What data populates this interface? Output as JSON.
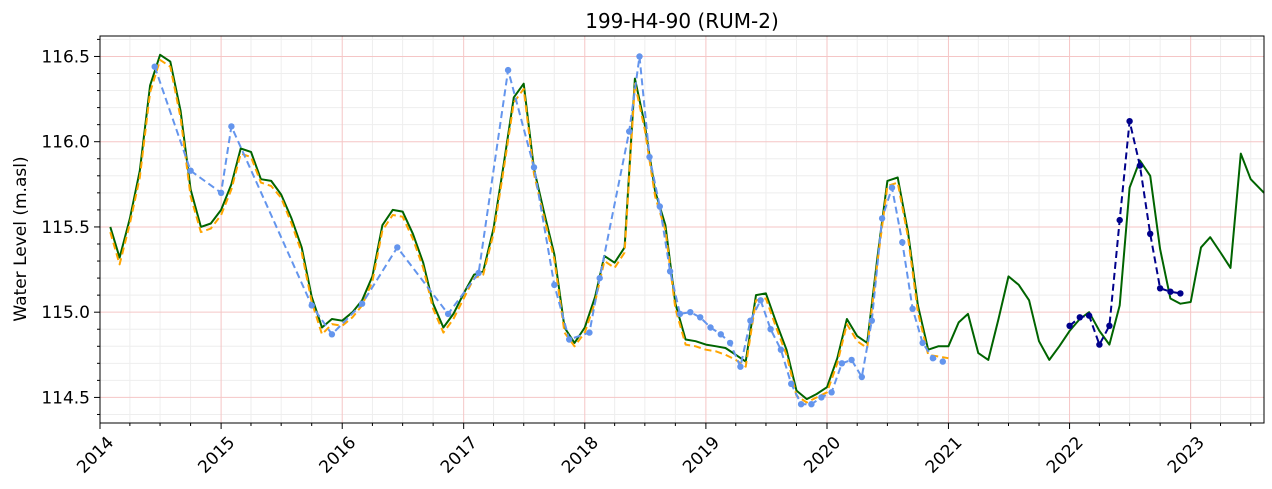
{
  "chart_data": {
    "type": "line",
    "title": "199-H4-90 (RUM-2)",
    "xlabel": "",
    "ylabel": "Water Level (m.asl)",
    "xlim": [
      "2014-01-01",
      "2023-08-10"
    ],
    "ylim": [
      114.35,
      116.62
    ],
    "x_ticks": [
      "2014",
      "2015",
      "2016",
      "2017",
      "2018",
      "2019",
      "2020",
      "2021",
      "2022",
      "2023"
    ],
    "y_ticks": [
      "114.5",
      "115.0",
      "115.5",
      "116.0",
      "116.5"
    ],
    "grid": true,
    "colors": {
      "major_grid": "#f5c6c6",
      "minor_grid": "#eeeeee",
      "model_line": "#006400",
      "model_dashed": "#ffa500",
      "observed": "#6495ed",
      "recent_observed": "#00008b"
    },
    "series": [
      {
        "style": "solid",
        "color": "#006400",
        "points": [
          [
            "2014-02-01",
            115.5
          ],
          [
            "2014-03-01",
            115.32
          ],
          [
            "2014-04-01",
            115.55
          ],
          [
            "2014-05-01",
            115.83
          ],
          [
            "2014-06-01",
            116.33
          ],
          [
            "2014-07-01",
            116.51
          ],
          [
            "2014-08-01",
            116.47
          ],
          [
            "2014-09-01",
            116.18
          ],
          [
            "2014-10-01",
            115.72
          ],
          [
            "2014-11-01",
            115.5
          ],
          [
            "2014-12-01",
            115.52
          ],
          [
            "2015-01-01",
            115.6
          ],
          [
            "2015-02-01",
            115.75
          ],
          [
            "2015-03-01",
            115.96
          ],
          [
            "2015-04-01",
            115.94
          ],
          [
            "2015-05-01",
            115.78
          ],
          [
            "2015-06-01",
            115.77
          ],
          [
            "2015-07-01",
            115.69
          ],
          [
            "2015-08-01",
            115.55
          ],
          [
            "2015-09-01",
            115.38
          ],
          [
            "2015-10-01",
            115.09
          ],
          [
            "2015-11-01",
            114.91
          ],
          [
            "2015-12-01",
            114.96
          ],
          [
            "2016-01-01",
            114.95
          ],
          [
            "2016-02-01",
            115.0
          ],
          [
            "2016-03-01",
            115.07
          ],
          [
            "2016-04-01",
            115.21
          ],
          [
            "2016-05-01",
            115.51
          ],
          [
            "2016-06-01",
            115.6
          ],
          [
            "2016-07-01",
            115.59
          ],
          [
            "2016-08-01",
            115.46
          ],
          [
            "2016-09-01",
            115.29
          ],
          [
            "2016-10-01",
            115.05
          ],
          [
            "2016-11-01",
            114.91
          ],
          [
            "2016-12-01",
            114.99
          ],
          [
            "2017-01-01",
            115.11
          ],
          [
            "2017-02-01",
            115.22
          ],
          [
            "2017-03-01",
            115.24
          ],
          [
            "2017-04-01",
            115.49
          ],
          [
            "2017-05-01",
            115.86
          ],
          [
            "2017-06-01",
            116.26
          ],
          [
            "2017-07-01",
            116.34
          ],
          [
            "2017-08-01",
            115.84
          ],
          [
            "2017-09-01",
            115.58
          ],
          [
            "2017-10-01",
            115.34
          ],
          [
            "2017-11-01",
            114.91
          ],
          [
            "2017-12-01",
            114.82
          ],
          [
            "2018-01-01",
            114.91
          ],
          [
            "2018-02-01",
            115.09
          ],
          [
            "2018-03-01",
            115.33
          ],
          [
            "2018-04-01",
            115.29
          ],
          [
            "2018-05-01",
            115.38
          ],
          [
            "2018-06-01",
            116.37
          ],
          [
            "2018-07-01",
            116.1
          ],
          [
            "2018-08-01",
            115.71
          ],
          [
            "2018-09-01",
            115.51
          ],
          [
            "2018-10-01",
            115.05
          ],
          [
            "2018-11-01",
            114.84
          ],
          [
            "2018-12-01",
            114.83
          ],
          [
            "2019-01-01",
            114.81
          ],
          [
            "2019-02-01",
            114.8
          ],
          [
            "2019-03-01",
            114.79
          ],
          [
            "2019-04-01",
            114.75
          ],
          [
            "2019-05-01",
            114.71
          ],
          [
            "2019-06-01",
            115.1
          ],
          [
            "2019-07-01",
            115.11
          ],
          [
            "2019-08-01",
            114.94
          ],
          [
            "2019-09-01",
            114.78
          ],
          [
            "2019-10-01",
            114.54
          ],
          [
            "2019-11-01",
            114.49
          ],
          [
            "2019-12-01",
            114.52
          ],
          [
            "2020-01-01",
            114.56
          ],
          [
            "2020-02-01",
            114.73
          ],
          [
            "2020-03-01",
            114.96
          ],
          [
            "2020-04-01",
            114.86
          ],
          [
            "2020-05-01",
            114.82
          ],
          [
            "2020-06-01",
            115.32
          ],
          [
            "2020-07-01",
            115.77
          ],
          [
            "2020-08-01",
            115.79
          ],
          [
            "2020-09-01",
            115.47
          ],
          [
            "2020-10-01",
            115.04
          ],
          [
            "2020-11-01",
            114.78
          ],
          [
            "2020-12-01",
            114.8
          ],
          [
            "2021-01-01",
            114.8
          ],
          [
            "2021-02-01",
            114.94
          ],
          [
            "2021-03-01",
            114.99
          ],
          [
            "2021-04-01",
            114.76
          ],
          [
            "2021-05-01",
            114.72
          ],
          [
            "2021-06-01",
            114.96
          ],
          [
            "2021-07-01",
            115.21
          ],
          [
            "2021-08-01",
            115.16
          ],
          [
            "2021-09-01",
            115.07
          ],
          [
            "2021-10-01",
            114.83
          ],
          [
            "2021-11-01",
            114.72
          ],
          [
            "2021-12-01",
            114.8
          ],
          [
            "2022-01-01",
            114.89
          ],
          [
            "2022-02-01",
            114.96
          ],
          [
            "2022-03-01",
            115.0
          ],
          [
            "2022-04-01",
            114.89
          ],
          [
            "2022-05-01",
            114.81
          ],
          [
            "2022-06-01",
            115.04
          ],
          [
            "2022-07-01",
            115.73
          ],
          [
            "2022-08-01",
            115.89
          ],
          [
            "2022-09-01",
            115.8
          ],
          [
            "2022-10-01",
            115.37
          ],
          [
            "2022-11-01",
            115.08
          ],
          [
            "2022-12-01",
            115.05
          ],
          [
            "2023-01-01",
            115.06
          ],
          [
            "2023-02-01",
            115.38
          ],
          [
            "2023-03-01",
            115.44
          ],
          [
            "2023-04-01",
            115.35
          ],
          [
            "2023-05-01",
            115.26
          ],
          [
            "2023-06-01",
            115.93
          ],
          [
            "2023-07-01",
            115.78
          ],
          [
            "2023-08-10",
            115.7
          ]
        ]
      },
      {
        "style": "dashed",
        "color": "#ffa500",
        "points": [
          [
            "2014-02-01",
            115.47
          ],
          [
            "2014-03-01",
            115.28
          ],
          [
            "2014-04-01",
            115.52
          ],
          [
            "2014-05-01",
            115.79
          ],
          [
            "2014-06-01",
            116.29
          ],
          [
            "2014-07-01",
            116.48
          ],
          [
            "2014-08-01",
            116.44
          ],
          [
            "2014-09-01",
            116.14
          ],
          [
            "2014-10-01",
            115.68
          ],
          [
            "2014-11-01",
            115.47
          ],
          [
            "2014-12-01",
            115.49
          ],
          [
            "2015-01-01",
            115.57
          ],
          [
            "2015-02-01",
            115.72
          ],
          [
            "2015-03-01",
            115.93
          ],
          [
            "2015-04-01",
            115.91
          ],
          [
            "2015-05-01",
            115.76
          ],
          [
            "2015-06-01",
            115.74
          ],
          [
            "2015-07-01",
            115.67
          ],
          [
            "2015-08-01",
            115.52
          ],
          [
            "2015-09-01",
            115.35
          ],
          [
            "2015-10-01",
            115.06
          ],
          [
            "2015-11-01",
            114.87
          ],
          [
            "2015-12-01",
            114.93
          ],
          [
            "2016-01-01",
            114.92
          ],
          [
            "2016-02-01",
            114.97
          ],
          [
            "2016-03-01",
            115.04
          ],
          [
            "2016-04-01",
            115.18
          ],
          [
            "2016-05-01",
            115.48
          ],
          [
            "2016-06-01",
            115.57
          ],
          [
            "2016-07-01",
            115.56
          ],
          [
            "2016-08-01",
            115.43
          ],
          [
            "2016-09-01",
            115.26
          ],
          [
            "2016-10-01",
            115.02
          ],
          [
            "2016-11-01",
            114.88
          ],
          [
            "2016-12-01",
            114.96
          ],
          [
            "2017-01-01",
            115.08
          ],
          [
            "2017-02-01",
            115.2
          ],
          [
            "2017-03-01",
            115.22
          ],
          [
            "2017-04-01",
            115.46
          ],
          [
            "2017-05-01",
            115.83
          ],
          [
            "2017-06-01",
            116.23
          ],
          [
            "2017-07-01",
            116.31
          ],
          [
            "2017-08-01",
            115.81
          ],
          [
            "2017-09-01",
            115.55
          ],
          [
            "2017-10-01",
            115.31
          ],
          [
            "2017-11-01",
            114.88
          ],
          [
            "2017-12-01",
            114.8
          ],
          [
            "2018-01-01",
            114.88
          ],
          [
            "2018-02-01",
            115.06
          ],
          [
            "2018-03-01",
            115.3
          ],
          [
            "2018-04-01",
            115.26
          ],
          [
            "2018-05-01",
            115.35
          ],
          [
            "2018-06-01",
            116.34
          ],
          [
            "2018-07-01",
            116.07
          ],
          [
            "2018-08-01",
            115.68
          ],
          [
            "2018-09-01",
            115.48
          ],
          [
            "2018-10-01",
            115.02
          ],
          [
            "2018-11-01",
            114.81
          ],
          [
            "2018-12-01",
            114.8
          ],
          [
            "2019-01-01",
            114.78
          ],
          [
            "2019-02-01",
            114.77
          ],
          [
            "2019-03-01",
            114.75
          ],
          [
            "2019-04-01",
            114.72
          ],
          [
            "2019-05-01",
            114.68
          ],
          [
            "2019-06-01",
            115.07
          ],
          [
            "2019-07-01",
            115.08
          ],
          [
            "2019-08-01",
            114.91
          ],
          [
            "2019-09-01",
            114.75
          ],
          [
            "2019-10-01",
            114.51
          ],
          [
            "2019-11-01",
            114.47
          ],
          [
            "2019-12-01",
            114.5
          ],
          [
            "2020-01-01",
            114.53
          ],
          [
            "2020-02-01",
            114.7
          ],
          [
            "2020-03-01",
            114.93
          ],
          [
            "2020-04-01",
            114.83
          ],
          [
            "2020-05-01",
            114.79
          ],
          [
            "2020-06-01",
            115.29
          ],
          [
            "2020-07-01",
            115.74
          ],
          [
            "2020-08-01",
            115.76
          ],
          [
            "2020-09-01",
            115.44
          ],
          [
            "2020-10-01",
            115.0
          ],
          [
            "2020-11-01",
            114.75
          ],
          [
            "2020-12-01",
            114.74
          ],
          [
            "2021-01-01",
            114.73
          ]
        ]
      },
      {
        "style": "dashed-markers",
        "color": "#6495ed",
        "points": [
          [
            "2014-06-15",
            116.44
          ],
          [
            "2014-10-01",
            115.83
          ],
          [
            "2015-01-01",
            115.7
          ],
          [
            "2015-02-01",
            116.09
          ],
          [
            "2015-10-01",
            115.04
          ],
          [
            "2015-12-01",
            114.87
          ],
          [
            "2016-03-01",
            115.05
          ],
          [
            "2016-06-15",
            115.38
          ],
          [
            "2016-11-15",
            114.99
          ],
          [
            "2017-02-15",
            115.23
          ],
          [
            "2017-05-15",
            116.42
          ],
          [
            "2017-08-01",
            115.85
          ],
          [
            "2017-10-01",
            115.16
          ],
          [
            "2017-11-15",
            114.84
          ],
          [
            "2018-01-15",
            114.88
          ],
          [
            "2018-02-15",
            115.2
          ],
          [
            "2018-05-15",
            116.06
          ],
          [
            "2018-06-15",
            116.5
          ],
          [
            "2018-07-15",
            115.91
          ],
          [
            "2018-08-15",
            115.62
          ],
          [
            "2018-09-15",
            115.24
          ],
          [
            "2018-10-15",
            114.99
          ],
          [
            "2018-11-15",
            115.0
          ],
          [
            "2018-12-15",
            114.97
          ],
          [
            "2019-01-15",
            114.91
          ],
          [
            "2019-02-15",
            114.87
          ],
          [
            "2019-03-15",
            114.82
          ],
          [
            "2019-04-15",
            114.68
          ],
          [
            "2019-05-15",
            114.95
          ],
          [
            "2019-06-15",
            115.07
          ],
          [
            "2019-07-15",
            114.9
          ],
          [
            "2019-08-15",
            114.78
          ],
          [
            "2019-09-15",
            114.58
          ],
          [
            "2019-10-15",
            114.46
          ],
          [
            "2019-11-15",
            114.46
          ],
          [
            "2019-12-15",
            114.5
          ],
          [
            "2020-01-15",
            114.53
          ],
          [
            "2020-02-15",
            114.7
          ],
          [
            "2020-03-15",
            114.72
          ],
          [
            "2020-04-15",
            114.62
          ],
          [
            "2020-05-15",
            114.95
          ],
          [
            "2020-06-15",
            115.55
          ],
          [
            "2020-07-15",
            115.73
          ],
          [
            "2020-08-15",
            115.41
          ],
          [
            "2020-09-15",
            115.02
          ],
          [
            "2020-10-15",
            114.82
          ],
          [
            "2020-11-15",
            114.73
          ],
          [
            "2020-12-15",
            114.71
          ]
        ]
      },
      {
        "style": "dashed-markers",
        "color": "#00008b",
        "points": [
          [
            "2022-01-01",
            114.92
          ],
          [
            "2022-02-01",
            114.97
          ],
          [
            "2022-03-01",
            114.98
          ],
          [
            "2022-04-01",
            114.81
          ],
          [
            "2022-05-01",
            114.92
          ],
          [
            "2022-06-01",
            115.54
          ],
          [
            "2022-07-01",
            116.12
          ],
          [
            "2022-08-01",
            115.86
          ],
          [
            "2022-09-01",
            115.46
          ],
          [
            "2022-10-01",
            115.14
          ],
          [
            "2022-11-01",
            115.12
          ],
          [
            "2022-12-01",
            115.11
          ]
        ]
      }
    ]
  }
}
